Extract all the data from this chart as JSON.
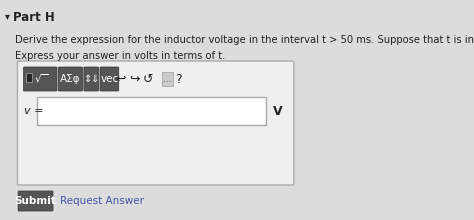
{
  "title": "Part H",
  "line1": "Derive the expression for the inductor voltage in the interval t > 50 ms. Suppose that t is in seconds.",
  "line2": "Express your answer in volts in terms of t.",
  "v_label": "v =",
  "v_unit": "V",
  "submit_text": "Submit",
  "request_text": "Request Answer",
  "bg_color": "#dcdcdc",
  "box_bg": "#efefef",
  "input_bg": "#ffffff",
  "toolbar_dark_bg": "#555555",
  "submit_bg": "#555555",
  "submit_fg": "#ffffff",
  "text_color": "#222222",
  "border_color": "#aaaaaa",
  "title_arrow": "▾",
  "icon_undo": "↩",
  "icon_redo": "↪",
  "icon_reset": "↺",
  "icon_dots": "…",
  "icon_arrows": "⇕⇓"
}
